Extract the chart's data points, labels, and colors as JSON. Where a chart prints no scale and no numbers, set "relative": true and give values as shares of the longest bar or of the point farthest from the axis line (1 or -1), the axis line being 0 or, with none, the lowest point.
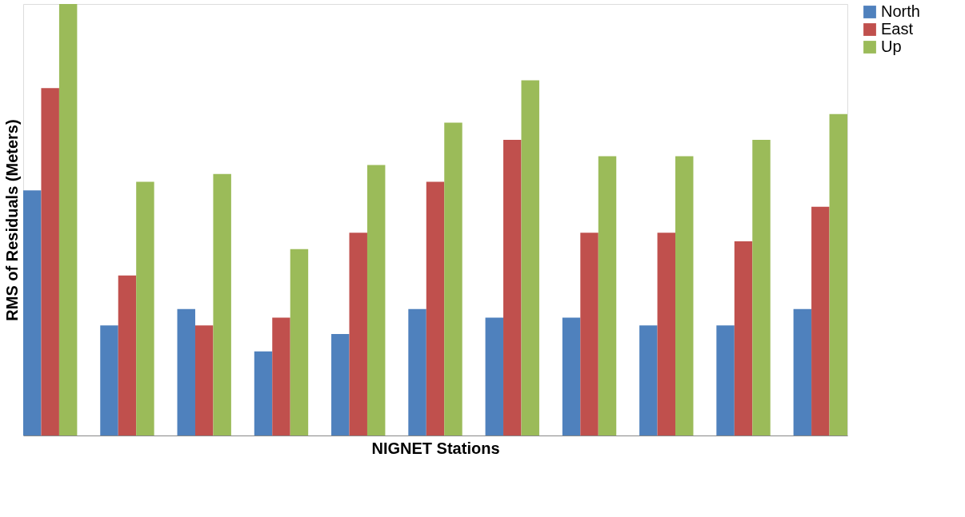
{
  "chart_data": {
    "type": "bar",
    "relative": true,
    "xlabel": "NIGNET Stations",
    "ylabel": "RMS of Residuals (Meters)",
    "legend": "right",
    "grid": false,
    "categories": [
      null,
      null,
      null,
      null,
      null,
      null,
      null,
      null,
      null,
      null,
      null
    ],
    "series": [
      {
        "name": "North",
        "color": "#4f81bd",
        "values": [
          0.568,
          0.255,
          0.293,
          0.195,
          0.235,
          0.293,
          0.273,
          0.273,
          0.255,
          0.255,
          0.293
        ]
      },
      {
        "name": "East",
        "color": "#c0504d",
        "values": [
          0.805,
          0.371,
          0.255,
          0.273,
          0.47,
          0.588,
          0.685,
          0.47,
          0.47,
          0.45,
          0.53
        ]
      },
      {
        "name": "Up",
        "color": "#9bbb59",
        "values": [
          1,
          0.588,
          0.606,
          0.432,
          0.627,
          0.725,
          0.823,
          0.647,
          0.647,
          0.685,
          0.745
        ]
      }
    ]
  }
}
